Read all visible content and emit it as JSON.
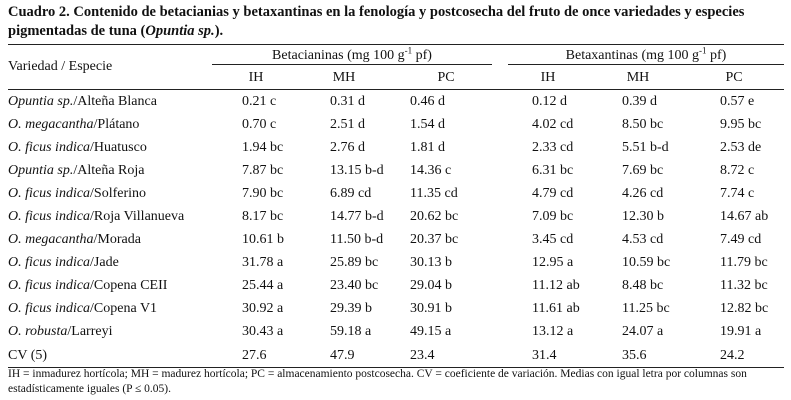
{
  "caption": {
    "prefix": "Cuadro 2. Contenido de betacianias y betaxantinas en la fenología y postcosecha del fruto de once variedades y especies pigmentadas de tuna (",
    "italic": "Opuntia sp.",
    "suffix": ")."
  },
  "header": {
    "row_label": "Variedad / Especie",
    "group1": {
      "name": "Betacianinas (mg 100 g",
      "sup": "-1",
      "unit": " pf)"
    },
    "group2": {
      "name": "Betaxantinas (mg 100 g",
      "sup": "-1",
      "unit": " pf)"
    },
    "sub": [
      "IH",
      "MH",
      "PC",
      "IH",
      "MH",
      "PC"
    ]
  },
  "rows": [
    {
      "genus": "Opuntia sp.",
      "variety": "/Alteña Blanca",
      "vals": [
        "0.21 c",
        "0.31 d",
        "0.46 d",
        "0.12 d",
        "0.39 d",
        "0.57 e"
      ]
    },
    {
      "genus": "O. megacantha",
      "variety": "/Plátano",
      "vals": [
        "0.70 c",
        "2.51 d",
        "1.54 d",
        "4.02 cd",
        "8.50 bc",
        "9.95 bc"
      ]
    },
    {
      "genus": "O. ficus indica",
      "variety": "/Huatusco",
      "vals": [
        "1.94 bc",
        "2.76 d",
        "1.81 d",
        "2.33 cd",
        "5.51 b-d",
        "2.53 de"
      ]
    },
    {
      "genus": "Opuntia sp.",
      "variety": "/Alteña Roja",
      "vals": [
        "7.87 bc",
        "13.15 b-d",
        "14.36 c",
        "6.31 bc",
        "7.69 bc",
        "8.72 c"
      ]
    },
    {
      "genus": "O. ficus indica",
      "variety": "/Solferino",
      "vals": [
        "7.90 bc",
        "6.89 cd",
        "11.35 cd",
        "4.79 cd",
        "4.26 cd",
        "7.74 c"
      ]
    },
    {
      "genus": "O. ficus indica",
      "variety": "/Roja Villanueva",
      "vals": [
        "8.17 bc",
        "14.77 b-d",
        "20.62 bc",
        "7.09 bc",
        "12.30 b",
        "14.67 ab"
      ]
    },
    {
      "genus": "O. megacantha",
      "variety": "/Morada",
      "vals": [
        "10.61 b",
        "11.50 b-d",
        "20.37 bc",
        "3.45 cd",
        "4.53 cd",
        "7.49 cd"
      ]
    },
    {
      "genus": "O. ficus indica",
      "variety": "/Jade",
      "vals": [
        "31.78 a",
        "25.89 bc",
        "30.13 b",
        "12.95 a",
        "10.59 bc",
        "11.79 bc"
      ]
    },
    {
      "genus": "O. ficus indica",
      "variety": "/Copena CEII",
      "vals": [
        "25.44 a",
        "23.40 bc",
        "29.04 b",
        "11.12 ab",
        "8.48 bc",
        "11.32 bc"
      ]
    },
    {
      "genus": "O. ficus indica",
      "variety": "/Copena V1",
      "vals": [
        "30.92 a",
        "29.39 b",
        "30.91 b",
        "11.61 ab",
        "11.25 bc",
        "12.82 bc"
      ]
    },
    {
      "genus": "O. robusta",
      "variety": "/Larreyi",
      "vals": [
        "30.43 a",
        "59.18 a",
        "49.15 a",
        "13.12 a",
        "24.07 a",
        "19.91 a"
      ]
    },
    {
      "genus": "",
      "variety": "CV (5)",
      "vals": [
        "27.6",
        "47.9",
        "23.4",
        "31.4",
        "35.6",
        "24.2"
      ]
    }
  ],
  "footnote": "IH = inmadurez hortícola; MH = madurez hortícola; PC = almacenamiento postcosecha. CV = coeficiente de variación. Medias con igual letra por columnas son estadísticamente iguales (P ≤ 0.05)."
}
